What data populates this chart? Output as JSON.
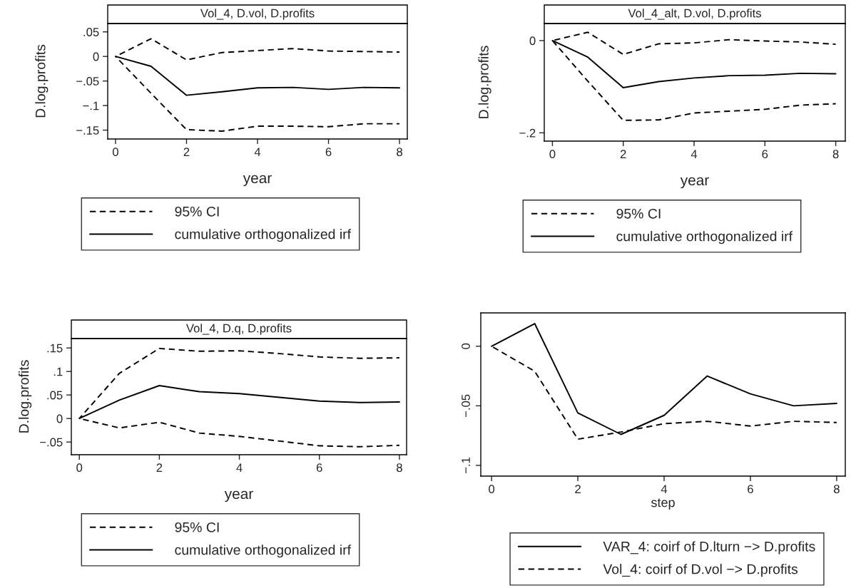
{
  "chart_data": [
    {
      "type": "line",
      "title": "Vol_4, D.vol, D.profits",
      "xlabel": "year",
      "ylabel": "D.log.profits",
      "x": [
        0,
        1,
        2,
        3,
        4,
        5,
        6,
        7,
        8
      ],
      "xlim": [
        -0.22,
        8.22
      ],
      "xticks": [
        0,
        2,
        4,
        6,
        8
      ],
      "ylim": [
        -0.168,
        0.067
      ],
      "yticks": [
        {
          "value": 0.05,
          "label": ".05"
        },
        0,
        {
          "value": -0.05,
          "label": "−.05"
        },
        {
          "value": -0.1,
          "label": "−.1"
        },
        {
          "value": -0.15,
          "label": "−.15"
        }
      ],
      "legend": "bottom",
      "grid": false,
      "series": [
        {
          "name": "95% CI",
          "color": "#000000",
          "line_style": "dashed",
          "values": [
            0,
            0.036,
            -0.007,
            0.008,
            0.012,
            0.016,
            0.011,
            0.01,
            0.009
          ]
        },
        {
          "color": "#000000",
          "line_style": "dashed",
          "values": [
            0,
            -0.075,
            -0.149,
            -0.152,
            -0.142,
            -0.142,
            -0.143,
            -0.137,
            -0.137
          ]
        },
        {
          "name": "cumulative orthogonalized irf",
          "color": "#000000",
          "line_style": "solid",
          "values": [
            0,
            -0.02,
            -0.079,
            -0.072,
            -0.064,
            -0.063,
            -0.067,
            -0.063,
            -0.064
          ]
        }
      ]
    },
    {
      "type": "line",
      "title": "Vol_4_alt, D.vol, D.profits",
      "xlabel": "year",
      "ylabel": "D.log.profits",
      "x": [
        0,
        1,
        2,
        3,
        4,
        5,
        6,
        7,
        8
      ],
      "xlim": [
        -0.23,
        8.27
      ],
      "xticks": [
        0,
        2,
        4,
        6,
        8
      ],
      "ylim": [
        -0.218,
        0.037
      ],
      "yticks": [
        0,
        {
          "value": -0.2,
          "label": "−.2"
        }
      ],
      "legend": "bottom",
      "grid": false,
      "series": [
        {
          "name": "95% CI",
          "color": "#000000",
          "line_style": "dashed",
          "values": [
            0,
            0.018,
            -0.03,
            -0.007,
            -0.005,
            0.002,
            -0.001,
            -0.003,
            -0.008
          ]
        },
        {
          "color": "#000000",
          "line_style": "dashed",
          "values": [
            0,
            -0.088,
            -0.173,
            -0.172,
            -0.157,
            -0.153,
            -0.149,
            -0.14,
            -0.137
          ]
        },
        {
          "name": "cumulative orthogonalized irf",
          "color": "#000000",
          "line_style": "solid",
          "values": [
            0,
            -0.036,
            -0.102,
            -0.089,
            -0.081,
            -0.076,
            -0.075,
            -0.071,
            -0.072
          ]
        }
      ]
    },
    {
      "type": "line",
      "title": "Vol_4, D.q, D.profits",
      "xlabel": "year",
      "ylabel": "D.log.profits",
      "x": [
        0,
        1,
        2,
        3,
        4,
        5,
        6,
        7,
        8
      ],
      "xlim": [
        -0.2,
        8.18
      ],
      "xticks": [
        0,
        2,
        4,
        6,
        8
      ],
      "ylim": [
        -0.077,
        0.17
      ],
      "yticks": [
        {
          "value": 0.15,
          "label": ".15"
        },
        {
          "value": 0.1,
          "label": ".1"
        },
        {
          "value": 0.05,
          "label": ".05"
        },
        0,
        {
          "value": -0.05,
          "label": "−.05"
        }
      ],
      "legend": "bottom",
      "grid": false,
      "series": [
        {
          "name": "95% CI",
          "color": "#000000",
          "line_style": "dashed",
          "values": [
            0,
            0.096,
            0.149,
            0.143,
            0.144,
            0.138,
            0.131,
            0.128,
            0.129
          ]
        },
        {
          "color": "#000000",
          "line_style": "dashed",
          "values": [
            0,
            -0.02,
            -0.008,
            -0.031,
            -0.038,
            -0.048,
            -0.058,
            -0.06,
            -0.057
          ]
        },
        {
          "name": "cumulative orthogonalized irf",
          "color": "#000000",
          "line_style": "solid",
          "values": [
            0,
            0.039,
            0.07,
            0.057,
            0.053,
            0.045,
            0.037,
            0.034,
            0.035
          ]
        }
      ]
    },
    {
      "type": "line",
      "xlabel": "step",
      "x": [
        0,
        1,
        2,
        3,
        4,
        5,
        6,
        7,
        8
      ],
      "xlim": [
        -0.25,
        8.2
      ],
      "xticks": [
        0,
        2,
        4,
        6,
        8
      ],
      "ylim": [
        -0.109,
        0.028
      ],
      "yticks": [
        0,
        {
          "value": -0.05,
          "label": "−.05"
        },
        {
          "value": -0.1,
          "label": "−.1"
        }
      ],
      "legend": "bottom",
      "grid": false,
      "series": [
        {
          "name": "VAR_4: coirf of D.lturn −> D.profits",
          "color": "#000000",
          "line_style": "solid",
          "values": [
            0,
            0.019,
            -0.056,
            -0.074,
            -0.058,
            -0.025,
            -0.04,
            -0.05,
            -0.048
          ]
        },
        {
          "name": "Vol_4: coirf of D.vol −> D.profits",
          "color": "#000000",
          "line_style": "dashed",
          "values": [
            0,
            -0.021,
            -0.078,
            -0.072,
            -0.065,
            -0.063,
            -0.067,
            -0.063,
            -0.064
          ]
        }
      ]
    }
  ]
}
